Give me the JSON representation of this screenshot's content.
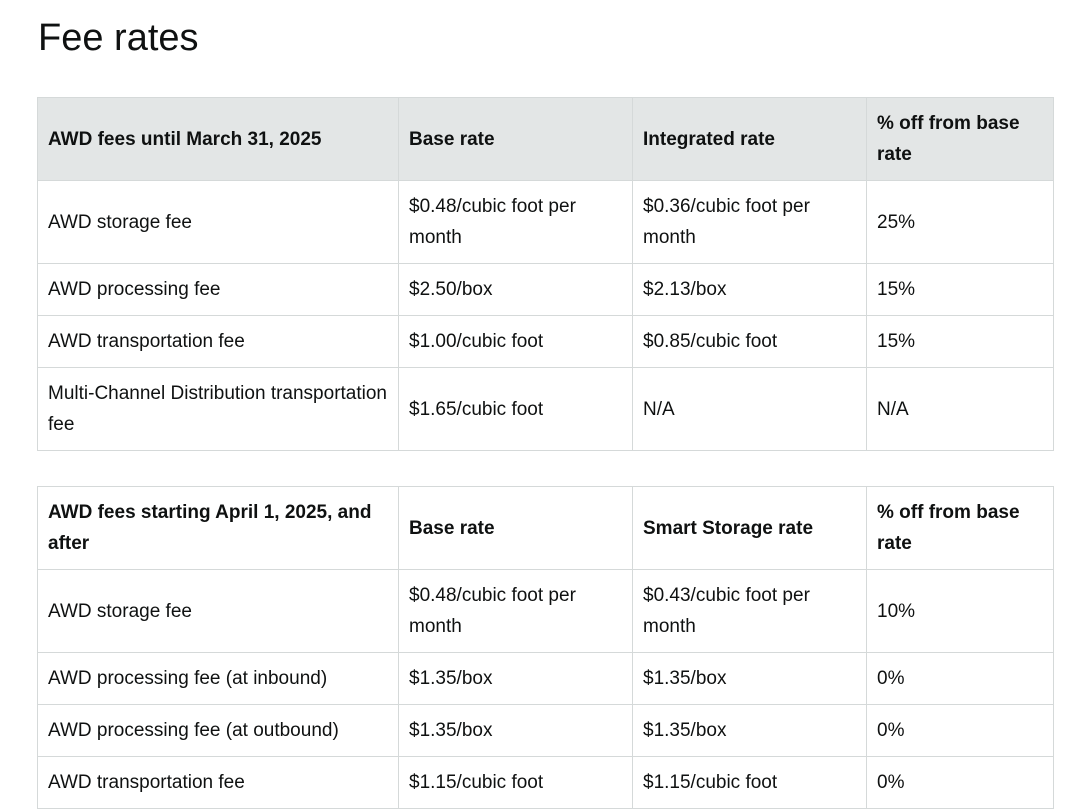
{
  "page": {
    "title": "Fee rates"
  },
  "tables": [
    {
      "headers": [
        "AWD fees until March 31, 2025",
        "Base rate",
        "Integrated rate",
        "% off from base rate"
      ],
      "rows": [
        [
          "AWD storage fee",
          "$0.48/cubic foot per month",
          "$0.36/cubic foot per month",
          "25%"
        ],
        [
          "AWD processing fee",
          "$2.50/box",
          "$2.13/box",
          "15%"
        ],
        [
          "AWD transportation fee",
          "$1.00/cubic foot",
          "$0.85/cubic foot",
          "15%"
        ],
        [
          "Multi-Channel Distribution transportation fee",
          "$1.65/cubic foot",
          "N/A",
          "N/A"
        ]
      ]
    },
    {
      "headers": [
        "AWD fees starting April 1, 2025, and after",
        "Base rate",
        "Smart Storage rate",
        "% off from base rate"
      ],
      "rows": [
        [
          "AWD storage fee",
          "$0.48/cubic foot per month",
          "$0.43/cubic foot per month",
          "10%"
        ],
        [
          "AWD processing fee (at inbound)",
          "$1.35/box",
          "$1.35/box",
          "0%"
        ],
        [
          "AWD processing fee (at outbound)",
          "$1.35/box",
          "$1.35/box",
          "0%"
        ],
        [
          "AWD transportation fee",
          "$1.15/cubic foot",
          "$1.15/cubic foot",
          "0%"
        ]
      ]
    }
  ]
}
